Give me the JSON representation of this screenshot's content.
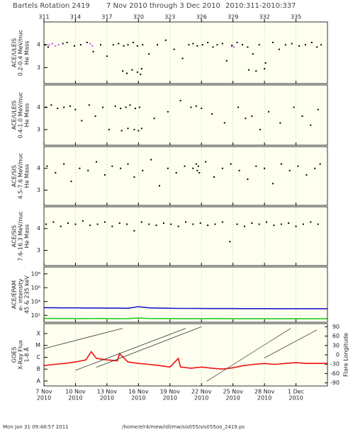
{
  "header": {
    "rotation": "Bartels Rotation 2419",
    "range": "7 Nov 2010 through 3 Dec 2010",
    "doy": "2010:311-2010:337"
  },
  "footer": {
    "date": "Mon Jan 31 09:48:57 2011",
    "path": "/home/elr4/mew/idl/mw/sis055/sis055oo_2419.ps"
  },
  "time_axis": {
    "xlim": [
      311,
      338
    ],
    "top_ticks": [
      311,
      314,
      317,
      320,
      323,
      326,
      329,
      332,
      335
    ],
    "bottom_ticks": [
      {
        "value": 311,
        "label": "7 Nov"
      },
      {
        "value": 314,
        "label": "10 Nov"
      },
      {
        "value": 317,
        "label": "13 Nov"
      },
      {
        "value": 320,
        "label": "16 Nov"
      },
      {
        "value": 323,
        "label": "19 Nov"
      },
      {
        "value": 326,
        "label": "22 Nov"
      },
      {
        "value": 329,
        "label": "25 Nov"
      },
      {
        "value": 332,
        "label": "28 Nov"
      },
      {
        "value": 335,
        "label": "1 Dec"
      }
    ],
    "bottom_years": [
      "2010",
      "2010",
      "2010",
      "2010",
      "2010",
      "2010",
      "2010",
      "2010",
      "2010"
    ]
  },
  "chart_data": [
    {
      "type": "scatter",
      "ylabel": [
        "ACE/ULEIS",
        "0.2-0.4 MeV/nuc",
        "He Mass"
      ],
      "ylim": [
        2.3,
        5
      ],
      "yticks": [
        3,
        4
      ],
      "series": [
        {
          "color": "#000000",
          "x": [
            311.1,
            311.4,
            312.8,
            313.2,
            313.9,
            314.5,
            315.1,
            315.7,
            316.4,
            317.0,
            317.6,
            318.1,
            318.6,
            319.0,
            319.5,
            319.9,
            320.4,
            318.5,
            318.9,
            319.4,
            319.9,
            320.2,
            320.3,
            321.0,
            321.8,
            322.6,
            323.4,
            324.2,
            324.8,
            325.2,
            325.6,
            326.1,
            326.6,
            327.1,
            327.5,
            328.0,
            328.4,
            328.9,
            329.4,
            329.9,
            330.4,
            330.9,
            331.5,
            332.1,
            332.8,
            333.4,
            334.0,
            334.6,
            335.3,
            335.9,
            336.5,
            337.0,
            337.4,
            330.5,
            331.2,
            332.0
          ],
          "values": [
            4.0,
            3.9,
            4.05,
            4.1,
            3.95,
            4.0,
            4.1,
            3.7,
            4.0,
            3.5,
            4.0,
            4.05,
            3.95,
            4.0,
            4.1,
            3.95,
            4.0,
            2.85,
            2.75,
            2.9,
            2.8,
            2.7,
            2.95,
            3.6,
            4.0,
            4.2,
            3.8,
            3.4,
            4.0,
            4.05,
            3.95,
            4.0,
            4.1,
            3.9,
            4.0,
            4.05,
            3.3,
            3.95,
            4.1,
            4.0,
            3.9,
            3.6,
            4.0,
            3.2,
            4.1,
            3.8,
            4.0,
            4.05,
            3.95,
            4.0,
            4.1,
            3.9,
            4.0,
            2.9,
            2.85,
            2.95
          ]
        },
        {
          "color": "#cc44ee",
          "x": [
            311.5,
            311.8,
            312.1,
            312.4,
            315.4,
            315.6,
            328.9,
            329.1
          ],
          "values": [
            4.0,
            4.05,
            3.95,
            4.0,
            4.05,
            3.95,
            4.0,
            3.9
          ]
        }
      ]
    },
    {
      "type": "scatter",
      "ylabel": [
        "ACE/ULEIS",
        "0.4-1.0 MeV/nuc",
        "He Mass"
      ],
      "ylim": [
        2.3,
        5
      ],
      "yticks": [
        3,
        4
      ],
      "series": [
        {
          "color": "#000000",
          "x": [
            311.2,
            311.7,
            312.3,
            312.9,
            313.5,
            314.0,
            314.6,
            315.3,
            315.9,
            316.6,
            317.2,
            317.8,
            318.3,
            318.8,
            319.2,
            319.7,
            320.1,
            318.4,
            319.0,
            319.6,
            320.0,
            320.3,
            321.5,
            322.8,
            324.0,
            325.0,
            325.5,
            326.0,
            327.0,
            328.2,
            329.5,
            330.2,
            330.8,
            331.6,
            332.4,
            333.5,
            334.8,
            335.6,
            336.4,
            337.1
          ],
          "values": [
            4.0,
            4.1,
            3.95,
            4.0,
            4.05,
            3.9,
            3.4,
            4.1,
            3.6,
            4.0,
            3.0,
            4.05,
            3.95,
            4.0,
            4.1,
            3.95,
            4.0,
            2.95,
            3.05,
            3.0,
            2.95,
            3.05,
            3.5,
            3.8,
            4.3,
            4.0,
            4.05,
            3.95,
            3.7,
            3.3,
            4.0,
            3.5,
            3.6,
            3.0,
            3.8,
            3.3,
            4.0,
            3.6,
            3.2,
            3.9
          ]
        }
      ]
    },
    {
      "type": "scatter",
      "ylabel": [
        "ACE/SIS",
        "4.5-7.6 MeV/nuc",
        "He Mass"
      ],
      "ylim": [
        2.3,
        5
      ],
      "yticks": [
        3,
        4
      ],
      "series": [
        {
          "color": "#000000",
          "x": [
            311.3,
            312.1,
            312.9,
            313.6,
            314.4,
            315.2,
            316.0,
            316.8,
            317.5,
            318.3,
            319.0,
            319.6,
            320.4,
            321.2,
            322.0,
            322.8,
            323.6,
            324.4,
            325.2,
            325.5,
            325.6,
            325.7,
            325.8,
            326.4,
            327.2,
            328.0,
            328.8,
            329.6,
            330.4,
            331.2,
            332.0,
            332.8,
            333.6,
            334.4,
            335.2,
            336.0,
            336.8,
            337.3
          ],
          "values": [
            4.1,
            3.8,
            4.2,
            3.4,
            4.0,
            3.9,
            4.3,
            3.7,
            4.1,
            4.0,
            4.2,
            3.6,
            3.9,
            4.4,
            3.2,
            4.0,
            3.8,
            4.1,
            4.0,
            4.2,
            3.9,
            4.1,
            3.8,
            4.3,
            3.6,
            4.0,
            4.2,
            3.9,
            3.5,
            4.1,
            4.0,
            3.3,
            4.2,
            3.9,
            4.1,
            3.7,
            4.0,
            4.2
          ]
        }
      ]
    },
    {
      "type": "scatter",
      "ylabel": [
        "ACE/SIS",
        "7.6-16.3 MeV/nuc",
        "He Mass"
      ],
      "ylim": [
        2.3,
        5
      ],
      "yticks": [
        3,
        4
      ],
      "series": [
        {
          "color": "#000000",
          "x": [
            311.2,
            311.9,
            312.6,
            313.3,
            314.0,
            314.7,
            315.4,
            316.1,
            316.8,
            317.5,
            318.2,
            318.9,
            319.6,
            320.3,
            321.0,
            321.7,
            322.4,
            323.1,
            323.8,
            324.5,
            325.2,
            325.9,
            326.6,
            327.3,
            328.0,
            328.7,
            329.4,
            330.1,
            330.8,
            331.5,
            332.2,
            332.9,
            333.6,
            334.3,
            335.0,
            335.7,
            336.4,
            337.1
          ],
          "values": [
            4.2,
            4.3,
            4.1,
            4.25,
            4.2,
            4.35,
            4.15,
            4.2,
            4.3,
            4.1,
            4.25,
            4.2,
            3.9,
            4.3,
            4.2,
            4.15,
            4.25,
            4.2,
            4.1,
            4.3,
            4.2,
            4.25,
            4.15,
            4.2,
            4.3,
            3.4,
            4.2,
            4.1,
            4.25,
            4.2,
            4.3,
            4.15,
            4.2,
            4.25,
            4.1,
            4.2,
            4.3,
            4.2
          ]
        }
      ]
    },
    {
      "type": "line",
      "log": true,
      "ylabel": [
        "ACE/EPAM",
        "e- intensity",
        "45 & 235 keV"
      ],
      "ylim": [
        10,
        1000000000
      ],
      "yticks": [
        {
          "value": 100,
          "label": "10²"
        },
        {
          "value": 10000,
          "label": "10⁴"
        },
        {
          "value": 1000000,
          "label": "10⁶"
        },
        {
          "value": 100000000,
          "label": "10⁸"
        }
      ],
      "series": [
        {
          "color": "#1a1acc",
          "x": [
            311,
            312,
            313,
            314,
            315,
            316,
            317,
            318,
            319,
            320,
            321,
            322,
            323,
            324,
            325,
            326,
            327,
            328,
            329,
            330,
            331,
            332,
            333,
            334,
            335,
            336,
            337,
            338
          ],
          "values": [
            1300,
            1250,
            1200,
            1200,
            1150,
            1150,
            1100,
            1100,
            1050,
            1800,
            1200,
            1100,
            1050,
            1000,
            1000,
            980,
            960,
            950,
            950,
            940,
            930,
            930,
            920,
            920,
            910,
            900,
            900,
            900
          ]
        },
        {
          "color": "#22cc22",
          "x": [
            311,
            312,
            313,
            314,
            315,
            316,
            317,
            318,
            319,
            320,
            321,
            322,
            323,
            324,
            325,
            326,
            327,
            328,
            329,
            330,
            331,
            332,
            333,
            334,
            335,
            336,
            337,
            338
          ],
          "values": [
            36,
            35,
            35,
            34,
            34,
            35,
            34,
            33,
            34,
            40,
            35,
            34,
            34,
            33,
            33,
            33,
            34,
            33,
            33,
            32,
            33,
            33,
            32,
            32,
            33,
            32,
            32,
            32
          ]
        }
      ]
    },
    {
      "type": "line",
      "log": true,
      "ylabel": [
        "GOES",
        "X-Ray Flux",
        "1-8 Å"
      ],
      "y2label": "Flare Longitude",
      "ylim": [
        3.8e-09,
        0.00068
      ],
      "yticks": [
        {
          "value": 1e-08,
          "label": "A"
        },
        {
          "value": 1e-07,
          "label": "B"
        },
        {
          "value": 1e-06,
          "label": "C"
        },
        {
          "value": 1e-05,
          "label": "M"
        },
        {
          "value": 0.0001,
          "label": "X"
        }
      ],
      "y2lim": [
        -100,
        100
      ],
      "y2ticks": [
        -90,
        -60,
        -30,
        0,
        30,
        60,
        90
      ],
      "series": [
        {
          "color": "#ee1111",
          "x": [
            311,
            312,
            313,
            314,
            315,
            315.5,
            316,
            317,
            318,
            318.2,
            319,
            320,
            321,
            322,
            323,
            323.8,
            324,
            325,
            326,
            327,
            328,
            329,
            330,
            331,
            332,
            333,
            334,
            335,
            336,
            337,
            338
          ],
          "values": [
            2e-07,
            2.5e-07,
            3e-07,
            4e-07,
            6e-07,
            3e-06,
            8e-07,
            6e-07,
            5e-07,
            2e-06,
            4e-07,
            3e-07,
            2.5e-07,
            2e-07,
            1.5e-07,
            8e-07,
            1.5e-07,
            1.2e-07,
            1.5e-07,
            1.2e-07,
            1e-07,
            1.3e-07,
            2e-07,
            2.5e-07,
            3e-07,
            2.5e-07,
            3e-07,
            3.5e-07,
            3e-07,
            3e-07,
            3e-07
          ]
        },
        {
          "color": "#333333",
          "axis": "y2",
          "x": [
            311,
            318.5
          ],
          "values": [
            20,
            85
          ]
        },
        {
          "color": "#333333",
          "axis": "y2",
          "x": [
            314,
            324.5
          ],
          "values": [
            -50,
            85
          ]
        },
        {
          "color": "#333333",
          "axis": "y2",
          "x": [
            316,
            326
          ],
          "values": [
            -40,
            90
          ]
        },
        {
          "color": "#555555",
          "axis": "y2",
          "x": [
            326.5,
            334.5
          ],
          "values": [
            -85,
            85
          ]
        },
        {
          "color": "#333333",
          "axis": "y2",
          "x": [
            332,
            337
          ],
          "values": [
            -10,
            80
          ]
        }
      ]
    }
  ]
}
